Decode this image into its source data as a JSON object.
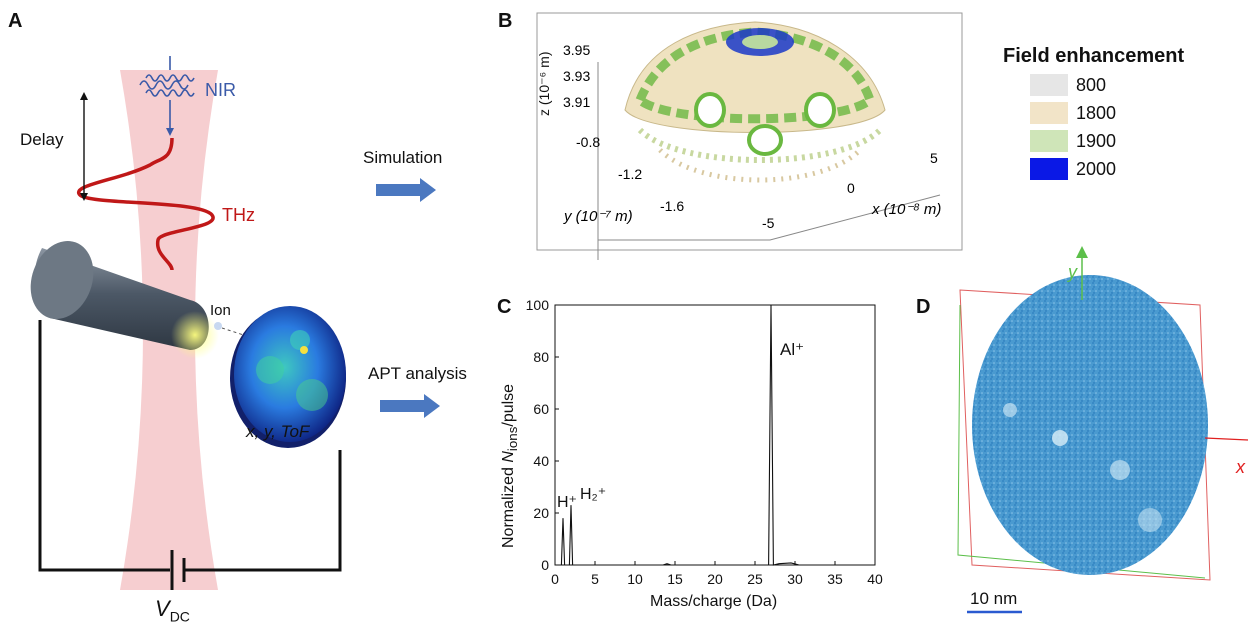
{
  "panels": {
    "a": {
      "label": "A",
      "delay": "Delay",
      "nir": "NIR",
      "thz": "THz",
      "ion": "Ion",
      "xy_tof": "x, y, ToF",
      "vdc": "V",
      "vdc_sub": "DC"
    },
    "arrows": {
      "simulation": "Simulation",
      "apt": "APT analysis"
    },
    "b": {
      "label": "B",
      "z_axis": "z (10⁻⁶ m)",
      "y_axis": "y (10⁻⁷ m)",
      "x_axis": "x (10⁻⁸ m)",
      "z_ticks": [
        "3.95",
        "3.93",
        "3.91"
      ],
      "y_ticks": [
        "-0.8",
        "-1.2",
        "-1.6"
      ],
      "x_ticks": [
        "5",
        "0",
        "-5"
      ],
      "legend_title": "Field enhancement",
      "legend": [
        {
          "value": "800",
          "color": "#e6e6e6"
        },
        {
          "value": "1800",
          "color": "#f2e4c8"
        },
        {
          "value": "1900",
          "color": "#cfe5b8"
        },
        {
          "value": "2000",
          "color": "#0a18e6"
        }
      ]
    },
    "c": {
      "label": "C",
      "ylabel_pre": "Normalized ",
      "ylabel_n": "N",
      "ylabel_sub": "ions",
      "ylabel_post": "/pulse",
      "xlabel": "Mass/charge (Da)",
      "peak_al": "Al⁺",
      "peak_h": "H⁺",
      "peak_h2": "H₂⁺"
    },
    "d": {
      "label": "D",
      "axis_y": "y",
      "axis_x": "x",
      "scalebar": "10 nm"
    }
  },
  "chart_data": {
    "type": "line",
    "title": "",
    "xlabel": "Mass/charge (Da)",
    "ylabel": "Normalized Nions/pulse",
    "xlim": [
      0,
      40
    ],
    "ylim": [
      0,
      100
    ],
    "xticks": [
      0,
      5,
      10,
      15,
      20,
      25,
      30,
      35,
      40
    ],
    "yticks": [
      0,
      20,
      40,
      60,
      80,
      100
    ],
    "series": [
      {
        "x": [
          0,
          0.8,
          1.0,
          1.2,
          1.8,
          2.0,
          2.2,
          3,
          13.5,
          14,
          14.5,
          20,
          26.7,
          27.0,
          27.3,
          28,
          29.5,
          30,
          30.5,
          40
        ],
        "y": [
          0,
          0,
          18,
          0,
          0,
          23,
          0,
          0,
          0,
          0.5,
          0,
          0,
          0,
          100,
          0,
          0.5,
          0.8,
          0.4,
          0,
          0
        ]
      }
    ],
    "annotations": [
      "H⁺",
      "H₂⁺",
      "Al⁺"
    ]
  },
  "colors": {
    "beam": "#f4c6c8",
    "thz": "#c01818",
    "nir": "#3a5aa8",
    "arrow": "#4b78c0",
    "detector_axis_y": "#5cbf4a",
    "detector_axis_x": "#e02020"
  }
}
